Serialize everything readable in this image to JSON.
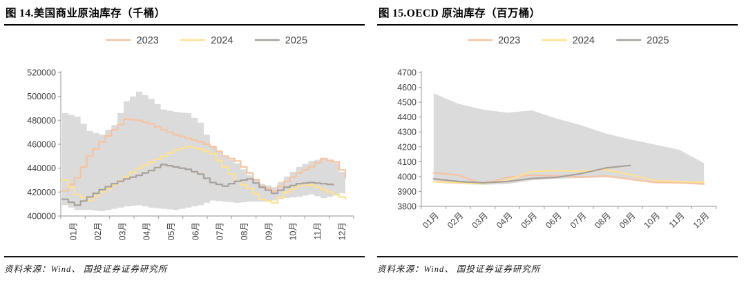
{
  "page": {
    "background": "#ffffff"
  },
  "figures": [
    {
      "id": "fig14",
      "title": "图 14.美国商业原油库存（千桶）",
      "source": "资料来源：Wind、 国投证券证券研究所",
      "legend": [
        {
          "label": "2023",
          "color": "#F6C3A1"
        },
        {
          "label": "2024",
          "color": "#FFE18F"
        },
        {
          "label": "2025",
          "color": "#A8A19B"
        }
      ],
      "chart_data": {
        "type": "line",
        "step": true,
        "title": "美国商业原油库存（千桶）",
        "xlabel": "",
        "ylabel": "",
        "x_labels": [
          "01月",
          "02月",
          "03月",
          "04月",
          "05月",
          "06月",
          "07月",
          "08月",
          "09月",
          "10月",
          "11月",
          "12月"
        ],
        "points_per_month": 2,
        "x_label_rotation": -90,
        "ylim": [
          400000,
          520000
        ],
        "y_ticks": [
          400000,
          420000,
          440000,
          460000,
          480000,
          500000,
          520000
        ],
        "grid": false,
        "legend_position": "top",
        "band": {
          "name": "历史区间",
          "color": "#DBDBDB",
          "top": [
            486000,
            483000,
            471000,
            468000,
            476000,
            496000,
            504000,
            498000,
            489000,
            487000,
            486000,
            478000,
            458000,
            450000,
            444000,
            434000,
            427000,
            424000,
            433000,
            441000,
            446000,
            448000,
            444000,
            430000
          ],
          "bottom": [
            409000,
            405000,
            405000,
            404000,
            406000,
            408000,
            409000,
            407000,
            406000,
            405000,
            407000,
            409000,
            413000,
            412000,
            411000,
            412000,
            412000,
            413000,
            415000,
            416000,
            418000,
            415000,
            417000,
            421000
          ]
        },
        "series": [
          {
            "name": "2023",
            "color": "#F6C3A1",
            "values": [
              421000,
              432000,
              450000,
              462000,
              472000,
              481000,
              480000,
              477000,
              472000,
              468000,
              465000,
              462000,
              458000,
              450000,
              446000,
              436000,
              425000,
              421000,
              429000,
              436000,
              441000,
              448000,
              445000,
              432000
            ]
          },
          {
            "name": "2024",
            "color": "#FFE18F",
            "values": [
              430000,
              418000,
              413000,
              420000,
              426000,
              433000,
              440000,
              445000,
              450000,
              455000,
              458000,
              456000,
              452000,
              441000,
              429000,
              423000,
              414000,
              411000,
              420000,
              425000,
              426000,
              422000,
              418000,
              414000
            ]
          },
          {
            "name": "2025",
            "color": "#A8A19B",
            "values": [
              414000,
              409000,
              416000,
              422000,
              427000,
              431000,
              434000,
              438000,
              443000,
              441000,
              439000,
              435000,
              428000,
              425000,
              429000,
              431000,
              424000,
              419000,
              424000,
              427000,
              428000,
              427000,
              426000,
              null
            ]
          }
        ]
      }
    },
    {
      "id": "fig15",
      "title": "图 15.OECD 原油库存（百万桶）",
      "source": "资料来源：Wind、 国投证券证券研究所",
      "legend": [
        {
          "label": "2023",
          "color": "#F6C3A1"
        },
        {
          "label": "2024",
          "color": "#FFE18F"
        },
        {
          "label": "2025",
          "color": "#A8A19B"
        }
      ],
      "chart_data": {
        "type": "line",
        "step": false,
        "title": "OECD 原油库存（百万桶）",
        "xlabel": "",
        "ylabel": "",
        "x_labels": [
          "01月",
          "02月",
          "03月",
          "04月",
          "05月",
          "06月",
          "07月",
          "08月",
          "09月",
          "10月",
          "11月",
          "12月"
        ],
        "points_per_month": 1,
        "x_label_rotation": -45,
        "ylim": [
          3800,
          4700
        ],
        "y_ticks": [
          3800,
          3900,
          4000,
          4100,
          4200,
          4300,
          4400,
          4500,
          4600,
          4700
        ],
        "grid": false,
        "legend_position": "top",
        "band": {
          "name": "历史区间",
          "color": "#DBDBDB",
          "top": [
            4560,
            4490,
            4450,
            4430,
            4445,
            4390,
            4345,
            4290,
            4250,
            4215,
            4180,
            4090
          ],
          "bottom": [
            3960,
            3950,
            3945,
            3950,
            3975,
            3985,
            3990,
            3995,
            3980,
            3960,
            3955,
            3948
          ]
        },
        "series": [
          {
            "name": "2023",
            "color": "#F6C3A1",
            "values": [
              4025,
              4010,
              3950,
              3995,
              4010,
              4005,
              3997,
              4005,
              3982,
              3960,
              3958,
              3950
            ]
          },
          {
            "name": "2024",
            "color": "#FFE18F",
            "values": [
              3965,
              3958,
              3952,
              3975,
              4035,
              4040,
              4035,
              4048,
              4012,
              3973,
              3966,
              3963
            ]
          },
          {
            "name": "2025",
            "color": "#A8A19B",
            "values": [
              3985,
              3967,
              3958,
              3967,
              3988,
              3995,
              4020,
              4058,
              4075,
              null,
              null,
              null
            ]
          }
        ]
      }
    }
  ]
}
